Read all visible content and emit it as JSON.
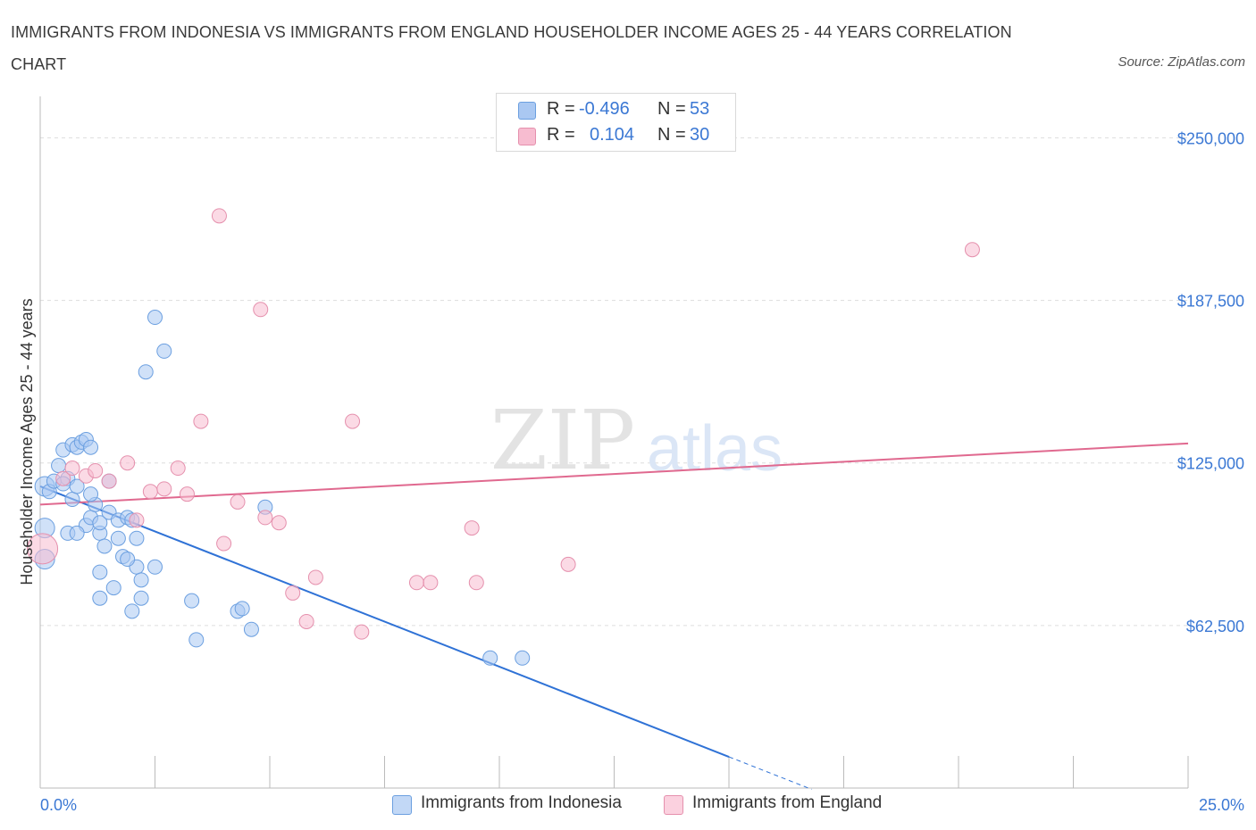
{
  "title": "IMMIGRANTS FROM INDONESIA VS IMMIGRANTS FROM ENGLAND HOUSEHOLDER INCOME AGES 25 - 44 YEARS CORRELATION CHART",
  "source": "Source: ZipAtlas.com",
  "watermark": {
    "zip": "ZIP",
    "atlas": "atlas"
  },
  "legend": {
    "r_label": "R =",
    "n_label": "N =",
    "series1": {
      "r": "-0.496",
      "n": "53"
    },
    "series2": {
      "r": "0.104",
      "n": "30"
    }
  },
  "colors": {
    "indonesia_fill": "#aac8f2",
    "indonesia_stroke": "#6b9fe0",
    "indonesia_line": "#2f72d6",
    "england_fill": "#f7bcd0",
    "england_stroke": "#e590ad",
    "england_line": "#e0698f",
    "axis_text": "#3b78d4",
    "grid": "#dddddd"
  },
  "chart_data": {
    "type": "scatter",
    "title": "IMMIGRANTS FROM INDONESIA VS IMMIGRANTS FROM ENGLAND HOUSEHOLDER INCOME AGES 25 - 44 YEARS CORRELATION CHART",
    "xlabel": "",
    "ylabel": "Householder Income Ages 25 - 44 years",
    "xlim": [
      0,
      25
    ],
    "ylim": [
      0,
      262500
    ],
    "x_tick_labels": [
      "0.0%",
      "25.0%"
    ],
    "y_ticks": [
      62500,
      125000,
      187500,
      250000
    ],
    "y_tick_labels": [
      "$62,500",
      "$125,000",
      "$187,500",
      "$250,000"
    ],
    "series": [
      {
        "name": "Immigrants from Indonesia",
        "r": -0.496,
        "n": 53,
        "trend": {
          "x0": 0,
          "y0": 116000,
          "x1": 15,
          "y1": 12000,
          "dash_to_x": 16.8
        },
        "points": [
          [
            0.1,
            116
          ],
          [
            0.2,
            114
          ],
          [
            0.3,
            118
          ],
          [
            0.4,
            124
          ],
          [
            0.5,
            130
          ],
          [
            0.6,
            119
          ],
          [
            0.7,
            132
          ],
          [
            0.8,
            131
          ],
          [
            0.9,
            133
          ],
          [
            1.0,
            134
          ],
          [
            1.1,
            131
          ],
          [
            0.5,
            117
          ],
          [
            0.7,
            111
          ],
          [
            0.8,
            116
          ],
          [
            1.0,
            101
          ],
          [
            1.1,
            104
          ],
          [
            1.2,
            109
          ],
          [
            1.1,
            113
          ],
          [
            1.3,
            98
          ],
          [
            1.3,
            102
          ],
          [
            1.4,
            93
          ],
          [
            1.5,
            106
          ],
          [
            1.7,
            103
          ],
          [
            1.7,
            96
          ],
          [
            1.8,
            89
          ],
          [
            1.9,
            104
          ],
          [
            2.0,
            103
          ],
          [
            2.1,
            85
          ],
          [
            2.2,
            80
          ],
          [
            1.9,
            88
          ],
          [
            1.3,
            83
          ],
          [
            1.6,
            77
          ],
          [
            2.2,
            73
          ],
          [
            2.1,
            96
          ],
          [
            2.5,
            85
          ],
          [
            2.0,
            68
          ],
          [
            1.3,
            73
          ],
          [
            0.6,
            98
          ],
          [
            0.8,
            98
          ],
          [
            1.5,
            118
          ],
          [
            0.1,
            100
          ],
          [
            0.1,
            88
          ],
          [
            2.5,
            181
          ],
          [
            2.7,
            168
          ],
          [
            2.3,
            160
          ],
          [
            3.3,
            72
          ],
          [
            3.4,
            57
          ],
          [
            4.3,
            68
          ],
          [
            4.4,
            69
          ],
          [
            4.6,
            61
          ],
          [
            4.9,
            108
          ],
          [
            9.8,
            50
          ],
          [
            10.5,
            50
          ]
        ]
      },
      {
        "name": "Immigrants from England",
        "r": 0.104,
        "n": 30,
        "trend": {
          "x0": 0,
          "y0": 109000,
          "x1": 25,
          "y1": 132500
        },
        "points": [
          [
            0.05,
            92
          ],
          [
            0.5,
            119
          ],
          [
            0.7,
            123
          ],
          [
            1.0,
            120
          ],
          [
            1.2,
            122
          ],
          [
            1.5,
            118
          ],
          [
            1.9,
            125
          ],
          [
            2.1,
            103
          ],
          [
            2.4,
            114
          ],
          [
            2.7,
            115
          ],
          [
            3.0,
            123
          ],
          [
            3.2,
            113
          ],
          [
            3.5,
            141
          ],
          [
            3.9,
            220
          ],
          [
            4.0,
            94
          ],
          [
            4.3,
            110
          ],
          [
            4.8,
            184
          ],
          [
            4.9,
            104
          ],
          [
            5.2,
            102
          ],
          [
            5.5,
            75
          ],
          [
            5.8,
            64
          ],
          [
            6.0,
            81
          ],
          [
            6.8,
            141
          ],
          [
            7.0,
            60
          ],
          [
            8.2,
            79
          ],
          [
            8.5,
            79
          ],
          [
            9.4,
            100
          ],
          [
            9.5,
            79
          ],
          [
            11.5,
            86
          ],
          [
            20.3,
            207
          ]
        ]
      }
    ],
    "legend_position": "top-center"
  }
}
